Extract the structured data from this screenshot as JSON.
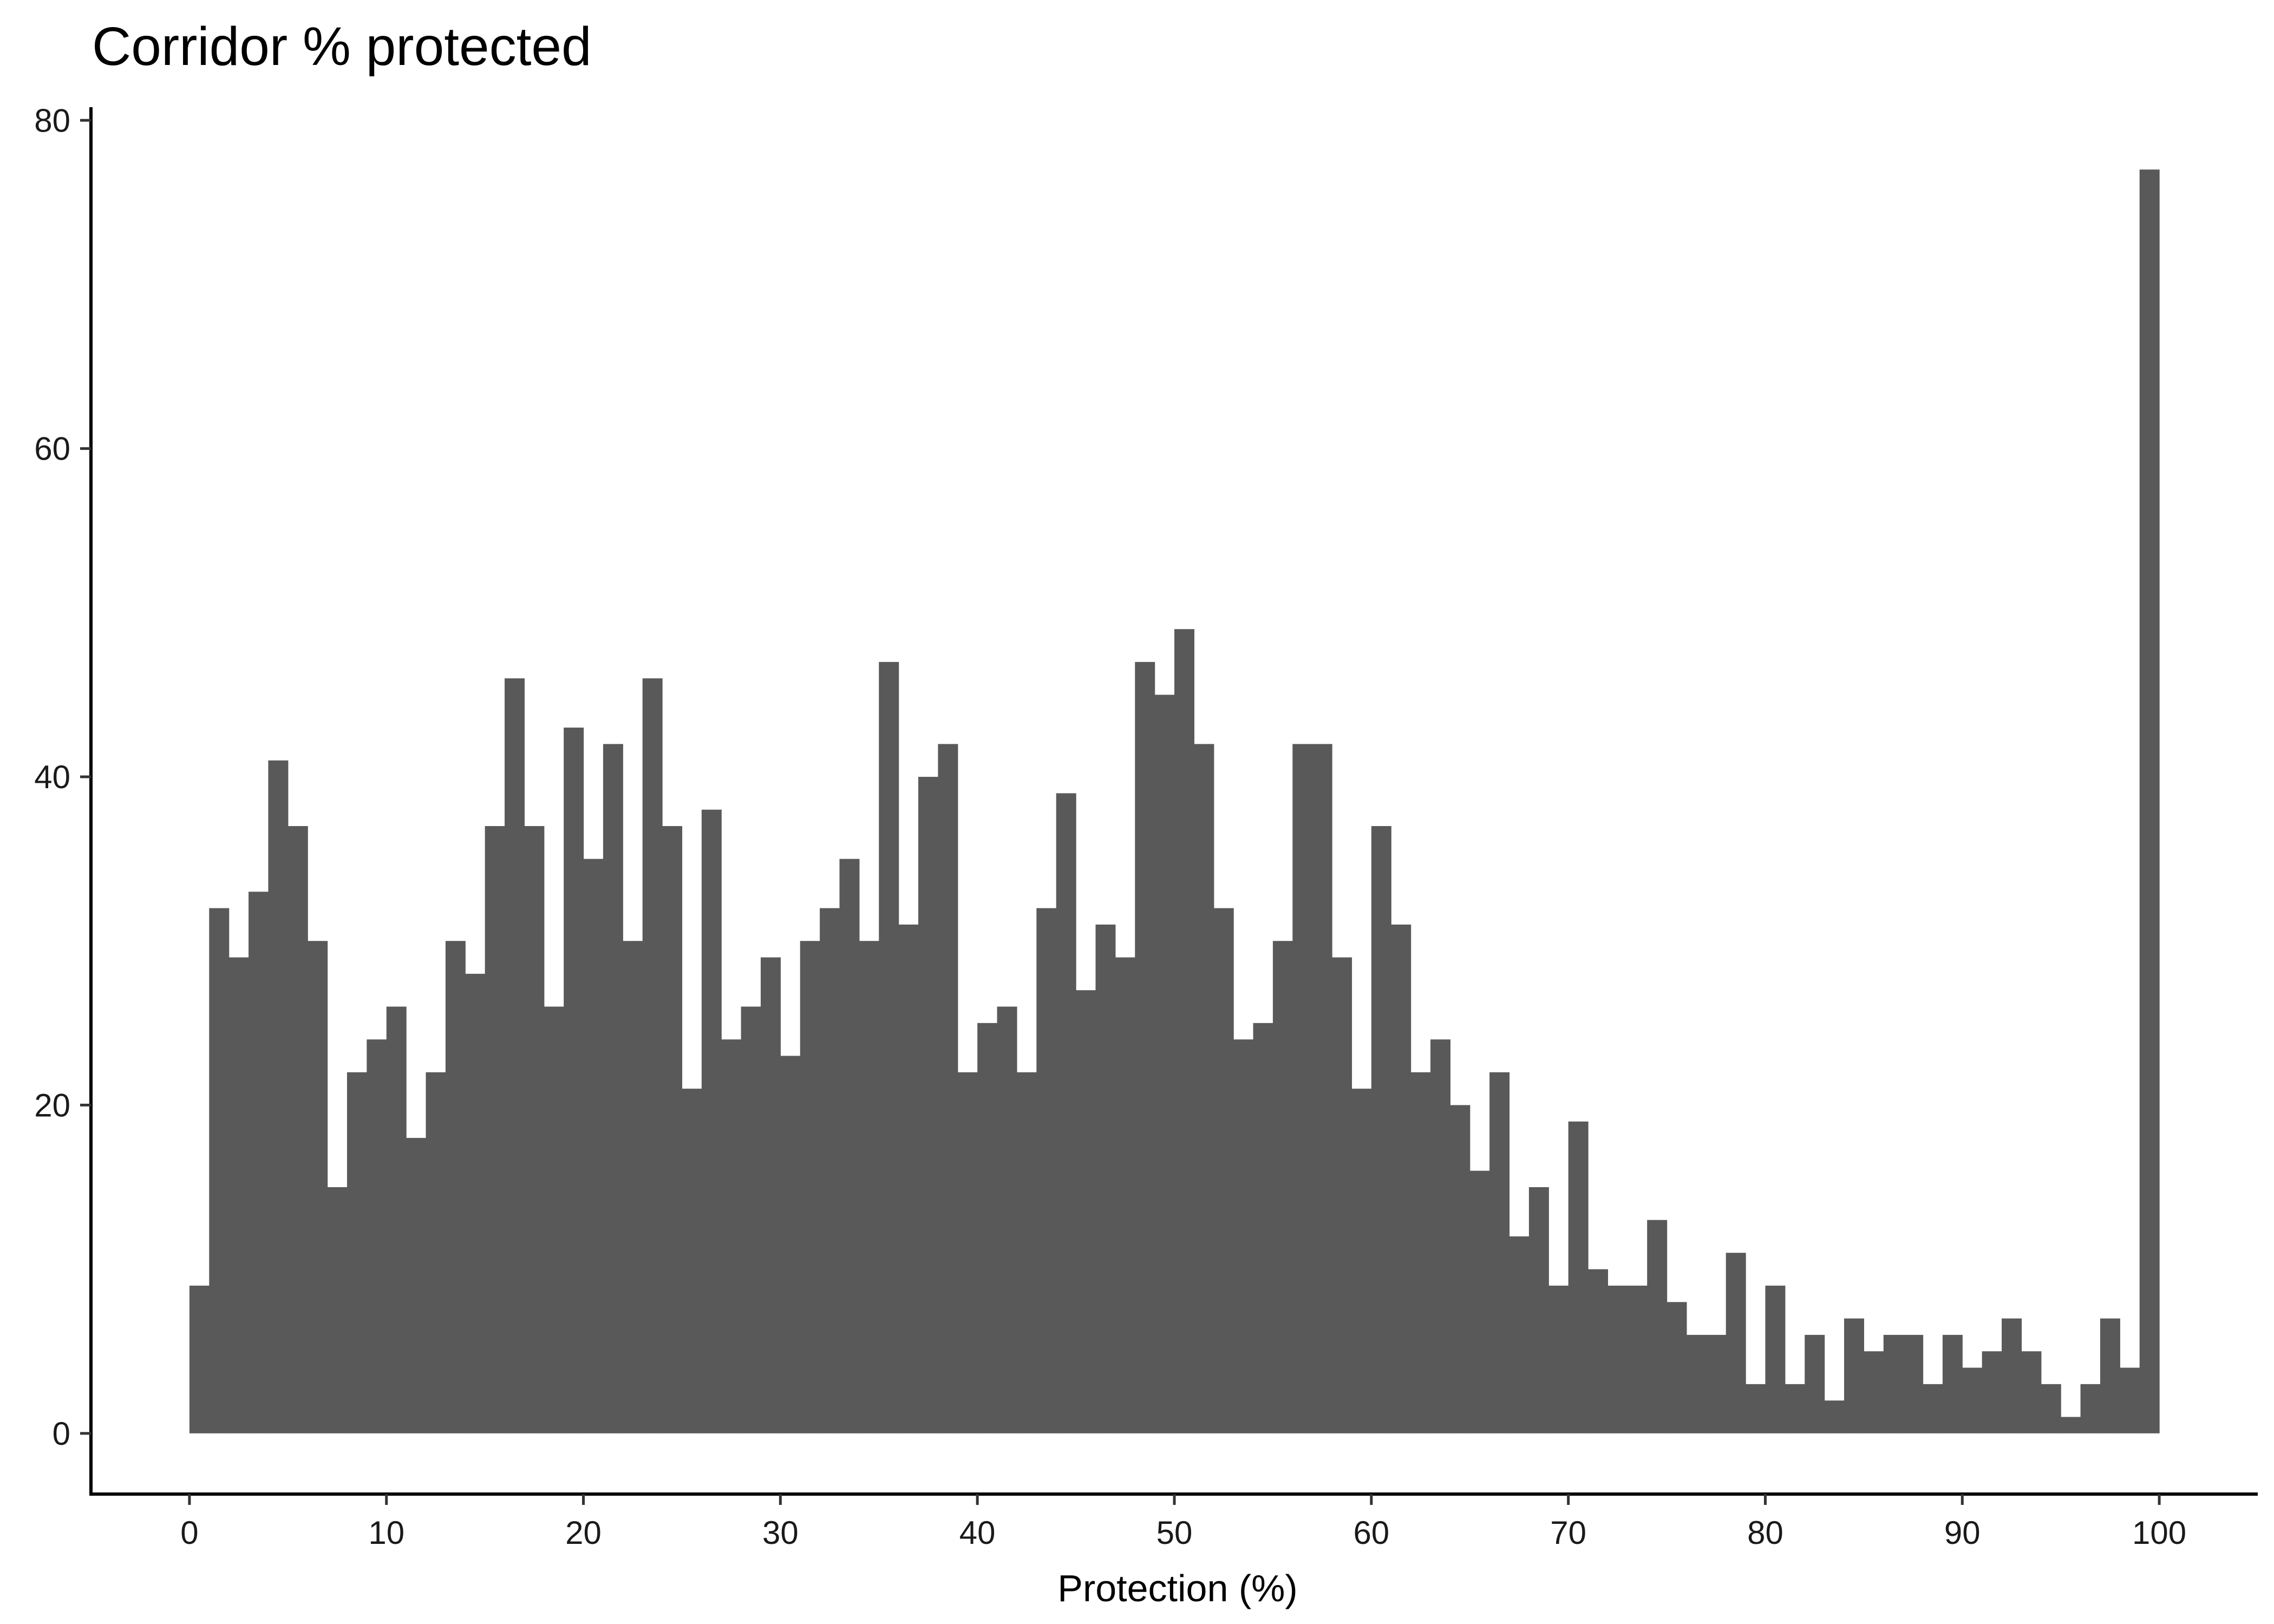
{
  "chart_data": {
    "type": "bar",
    "title": "Corridor % protected",
    "xlabel": "Protection (%)",
    "ylabel": "",
    "xlim": [
      -5,
      105
    ],
    "ylim": [
      -3.7,
      80.8
    ],
    "bin_width": 1,
    "x_ticks": [
      0,
      10,
      20,
      30,
      40,
      50,
      60,
      70,
      80,
      90,
      100
    ],
    "y_ticks": [
      0,
      20,
      40,
      60,
      80
    ],
    "grid": false,
    "legend": "none",
    "bar_color": "#595959",
    "bins": [
      {
        "x": 0,
        "count": 9
      },
      {
        "x": 1,
        "count": 32
      },
      {
        "x": 2,
        "count": 29
      },
      {
        "x": 3,
        "count": 33
      },
      {
        "x": 4,
        "count": 41
      },
      {
        "x": 5,
        "count": 37
      },
      {
        "x": 6,
        "count": 30
      },
      {
        "x": 7,
        "count": 15
      },
      {
        "x": 8,
        "count": 22
      },
      {
        "x": 9,
        "count": 24
      },
      {
        "x": 10,
        "count": 26
      },
      {
        "x": 11,
        "count": 18
      },
      {
        "x": 12,
        "count": 22
      },
      {
        "x": 13,
        "count": 30
      },
      {
        "x": 14,
        "count": 28
      },
      {
        "x": 15,
        "count": 37
      },
      {
        "x": 16,
        "count": 46
      },
      {
        "x": 17,
        "count": 37
      },
      {
        "x": 18,
        "count": 26
      },
      {
        "x": 19,
        "count": 43
      },
      {
        "x": 20,
        "count": 35
      },
      {
        "x": 21,
        "count": 42
      },
      {
        "x": 22,
        "count": 30
      },
      {
        "x": 23,
        "count": 46
      },
      {
        "x": 24,
        "count": 37
      },
      {
        "x": 25,
        "count": 21
      },
      {
        "x": 26,
        "count": 38
      },
      {
        "x": 27,
        "count": 24
      },
      {
        "x": 28,
        "count": 26
      },
      {
        "x": 29,
        "count": 29
      },
      {
        "x": 30,
        "count": 23
      },
      {
        "x": 31,
        "count": 30
      },
      {
        "x": 32,
        "count": 32
      },
      {
        "x": 33,
        "count": 35
      },
      {
        "x": 34,
        "count": 30
      },
      {
        "x": 35,
        "count": 47
      },
      {
        "x": 36,
        "count": 31
      },
      {
        "x": 37,
        "count": 40
      },
      {
        "x": 38,
        "count": 42
      },
      {
        "x": 39,
        "count": 22
      },
      {
        "x": 40,
        "count": 25
      },
      {
        "x": 41,
        "count": 26
      },
      {
        "x": 42,
        "count": 22
      },
      {
        "x": 43,
        "count": 32
      },
      {
        "x": 44,
        "count": 39
      },
      {
        "x": 45,
        "count": 27
      },
      {
        "x": 46,
        "count": 31
      },
      {
        "x": 47,
        "count": 29
      },
      {
        "x": 48,
        "count": 47
      },
      {
        "x": 49,
        "count": 45
      },
      {
        "x": 50,
        "count": 49
      },
      {
        "x": 51,
        "count": 42
      },
      {
        "x": 52,
        "count": 32
      },
      {
        "x": 53,
        "count": 24
      },
      {
        "x": 54,
        "count": 25
      },
      {
        "x": 55,
        "count": 30
      },
      {
        "x": 56,
        "count": 42
      },
      {
        "x": 57,
        "count": 42
      },
      {
        "x": 58,
        "count": 29
      },
      {
        "x": 59,
        "count": 21
      },
      {
        "x": 60,
        "count": 37
      },
      {
        "x": 61,
        "count": 31
      },
      {
        "x": 62,
        "count": 22
      },
      {
        "x": 63,
        "count": 24
      },
      {
        "x": 64,
        "count": 20
      },
      {
        "x": 65,
        "count": 16
      },
      {
        "x": 66,
        "count": 22
      },
      {
        "x": 67,
        "count": 12
      },
      {
        "x": 68,
        "count": 15
      },
      {
        "x": 69,
        "count": 9
      },
      {
        "x": 70,
        "count": 19
      },
      {
        "x": 71,
        "count": 10
      },
      {
        "x": 72,
        "count": 9
      },
      {
        "x": 73,
        "count": 9
      },
      {
        "x": 74,
        "count": 13
      },
      {
        "x": 75,
        "count": 8
      },
      {
        "x": 76,
        "count": 6
      },
      {
        "x": 77,
        "count": 6
      },
      {
        "x": 78,
        "count": 11
      },
      {
        "x": 79,
        "count": 3
      },
      {
        "x": 80,
        "count": 9
      },
      {
        "x": 81,
        "count": 3
      },
      {
        "x": 82,
        "count": 6
      },
      {
        "x": 83,
        "count": 2
      },
      {
        "x": 84,
        "count": 7
      },
      {
        "x": 85,
        "count": 5
      },
      {
        "x": 86,
        "count": 6
      },
      {
        "x": 87,
        "count": 6
      },
      {
        "x": 88,
        "count": 3
      },
      {
        "x": 89,
        "count": 6
      },
      {
        "x": 90,
        "count": 4
      },
      {
        "x": 91,
        "count": 5
      },
      {
        "x": 92,
        "count": 7
      },
      {
        "x": 93,
        "count": 5
      },
      {
        "x": 94,
        "count": 3
      },
      {
        "x": 95,
        "count": 1
      },
      {
        "x": 96,
        "count": 3
      },
      {
        "x": 97,
        "count": 7
      },
      {
        "x": 98,
        "count": 4
      },
      {
        "x": 99,
        "count": 77
      }
    ]
  }
}
